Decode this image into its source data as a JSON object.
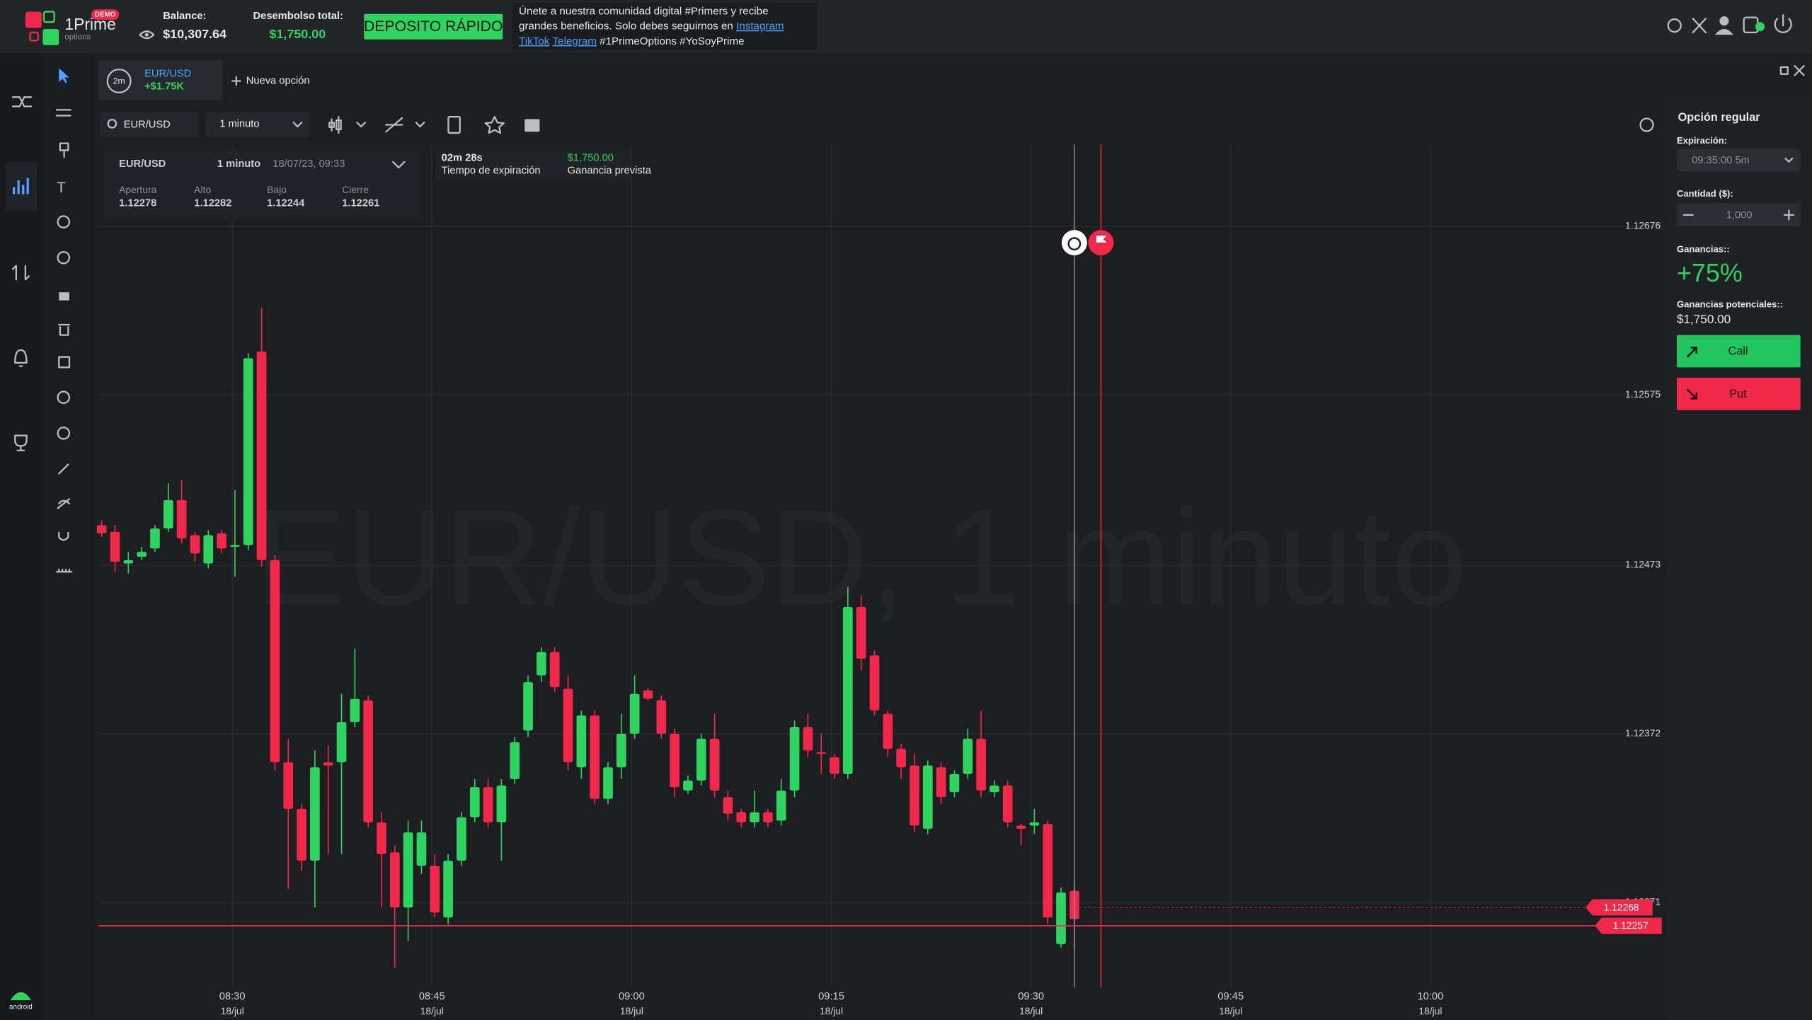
{
  "header": {
    "brand": "1Prime",
    "brand_sub": "options",
    "badge": "DEMO",
    "balance_label": "Balance:",
    "balance": "$10,307.64",
    "disbursement_label": "Desembolso total:",
    "disbursement": "$1,750.00",
    "deposit_button": "DEPOSITO RÁPIDO",
    "promo": {
      "line1": "Únete a nuestra comunidad digital #Primers y recibe",
      "line2": "grandes beneficios. Solo debes seguirnos en",
      "instagram": "Instagram",
      "tiktok": "TikTok",
      "telegram": "Telegram",
      "tags": "#1PrimeOptions #YoSoyPrime"
    }
  },
  "tab": {
    "duration": "2m",
    "symbol": "EUR/USD",
    "profit": "+$1.75K",
    "new_option": "Nueva opción"
  },
  "toolbar": {
    "search": "EUR/USD",
    "interval": "1 minuto"
  },
  "legend": {
    "symbol": "EUR/USD",
    "interval": "1 minuto",
    "datetime": "18/07/23, 09:33",
    "labels": [
      "Apertura",
      "Alto",
      "Bajo",
      "Cierre"
    ],
    "values": [
      "1.12278",
      "1.12282",
      "1.12244",
      "1.12261"
    ]
  },
  "expiry": {
    "time": "02m 28s",
    "time_label": "Tiempo de expiración",
    "profit": "$1,750.00",
    "profit_label": "Ganancia prevista"
  },
  "chart_data": {
    "type": "candlestick",
    "watermark": "EUR/USD, 1 minuto",
    "up_color": "#2fd35f",
    "down_color": "#f0284a",
    "grid": true,
    "ylim": [
      1.1222,
      1.12725
    ],
    "yticks": [
      1.12676,
      1.12575,
      1.12473,
      1.12372,
      1.12271
    ],
    "xticks": [
      "08:30",
      "08:45",
      "09:00",
      "09:15",
      "09:30",
      "09:45",
      "10:00"
    ],
    "xtick_dates": [
      "18/jul",
      "18/jul",
      "18/jul",
      "18/jul",
      "18/jul",
      "18/jul",
      "18/jul"
    ],
    "price_lines": [
      {
        "value": 1.12268,
        "color": "#f0284a"
      },
      {
        "value": 1.12257,
        "color": "#f0284a"
      }
    ],
    "open": [
      1.12497,
      1.12493,
      1.12474,
      1.12478,
      1.12483,
      1.12495,
      1.12512,
      1.12491,
      1.12474,
      1.12492,
      1.12484,
      1.12485,
      1.12601,
      1.12476,
      1.12355,
      1.12327,
      1.12296,
      1.12355,
      1.12355,
      1.12379,
      1.12392,
      1.12319,
      1.12301,
      1.12268,
      1.12293,
      1.12293,
      1.12262,
      1.12296,
      1.12322,
      1.1234,
      1.12319,
      1.12345,
      1.12374,
      1.12407,
      1.12421,
      1.12399,
      1.12352,
      1.12383,
      1.12333,
      1.12352,
      1.12372,
      1.12398,
      1.12392,
      1.12372,
      1.12338,
      1.12344,
      1.12369,
      1.12334,
      1.12325,
      1.12319,
      1.12325,
      1.1232,
      1.12338,
      1.12376,
      1.12361,
      1.12358,
      1.12348,
      1.12448,
      1.12419,
      1.12384,
      1.12363,
      1.12353,
      1.12315,
      1.12352,
      1.12337,
      1.12348,
      1.12369,
      1.12337,
      1.12341,
      1.12317,
      1.12317,
      1.12318,
      1.12246,
      1.12278
    ],
    "high": [
      1.125,
      1.12497,
      1.12481,
      1.12484,
      1.12497,
      1.12522,
      1.12524,
      1.12493,
      1.12494,
      1.12494,
      1.12518,
      1.126,
      1.12627,
      1.12479,
      1.12369,
      1.1233,
      1.12362,
      1.12365,
      1.12396,
      1.12423,
      1.12395,
      1.12325,
      1.12305,
      1.1232,
      1.1232,
      1.123,
      1.123,
      1.12325,
      1.12345,
      1.12345,
      1.12345,
      1.1237,
      1.12407,
      1.12424,
      1.12424,
      1.12407,
      1.12386,
      1.12386,
      1.12355,
      1.12384,
      1.12407,
      1.124,
      1.12395,
      1.12375,
      1.12347,
      1.12372,
      1.12384,
      1.12338,
      1.12327,
      1.12338,
      1.12327,
      1.12345,
      1.1238,
      1.12384,
      1.12372,
      1.1236,
      1.1246,
      1.12455,
      1.12422,
      1.12386,
      1.12366,
      1.1236,
      1.12356,
      1.12355,
      1.1235,
      1.12375,
      1.12386,
      1.12344,
      1.12344,
      1.12318,
      1.12327,
      1.1232,
      1.1228,
      1.12282
    ],
    "low": [
      1.1249,
      1.12469,
      1.12468,
      1.12476,
      1.12481,
      1.12493,
      1.12486,
      1.12475,
      1.12471,
      1.1248,
      1.12466,
      1.12482,
      1.12472,
      1.1235,
      1.12279,
      1.1229,
      1.12268,
      1.123,
      1.123,
      1.12376,
      1.12316,
      1.12268,
      1.12232,
      1.12248,
      1.12288,
      1.12262,
      1.12258,
      1.12293,
      1.12319,
      1.12316,
      1.12296,
      1.12342,
      1.1237,
      1.12403,
      1.12397,
      1.1235,
      1.12345,
      1.1233,
      1.1233,
      1.12345,
      1.12369,
      1.12392,
      1.12369,
      1.12334,
      1.12336,
      1.12341,
      1.12334,
      1.1232,
      1.12316,
      1.12316,
      1.12316,
      1.12317,
      1.12334,
      1.12358,
      1.12348,
      1.12345,
      1.12345,
      1.1241,
      1.12383,
      1.12358,
      1.12345,
      1.12313,
      1.12312,
      1.1233,
      1.12334,
      1.12345,
      1.12334,
      1.12334,
      1.12316,
      1.12305,
      1.12312,
      1.12258,
      1.12244,
      1.12244
    ],
    "close": [
      1.12492,
      1.12475,
      1.12476,
      1.12481,
      1.12495,
      1.12512,
      1.12489,
      1.1248,
      1.12491,
      1.12483,
      1.12485,
      1.12597,
      1.12476,
      1.12355,
      1.12327,
      1.12296,
      1.12352,
      1.12353,
      1.12379,
      1.12393,
      1.12319,
      1.123,
      1.12268,
      1.12313,
      1.12313,
      1.12265,
      1.12296,
      1.12322,
      1.1234,
      1.12319,
      1.12341,
      1.12367,
      1.12403,
      1.12421,
      1.124,
      1.12355,
      1.12383,
      1.12333,
      1.12352,
      1.12372,
      1.12396,
      1.12393,
      1.12372,
      1.1234,
      1.12344,
      1.12369,
      1.12338,
      1.12324,
      1.12319,
      1.12325,
      1.12319,
      1.12338,
      1.12376,
      1.12362,
      1.1236,
      1.12348,
      1.12448,
      1.12417,
      1.12386,
      1.12363,
      1.12352,
      1.12317,
      1.12353,
      1.12334,
      1.12348,
      1.12369,
      1.12338,
      1.12341,
      1.12319,
      1.12315,
      1.12319,
      1.12262,
      1.12277,
      1.12261
    ]
  },
  "order_panel": {
    "title": "Opción regular",
    "expiration_label": "Expiración:",
    "expiration": "09:35:00 5m",
    "amount_label": "Cantidad ($):",
    "amount": "1,000",
    "payout_label": "Ganancias::",
    "payout": "+75%",
    "potential_label": "Ganancias potenciales::",
    "potential": "$1,750.00",
    "call": "Call",
    "put": "Put"
  },
  "sidebar": {
    "android": "android"
  }
}
